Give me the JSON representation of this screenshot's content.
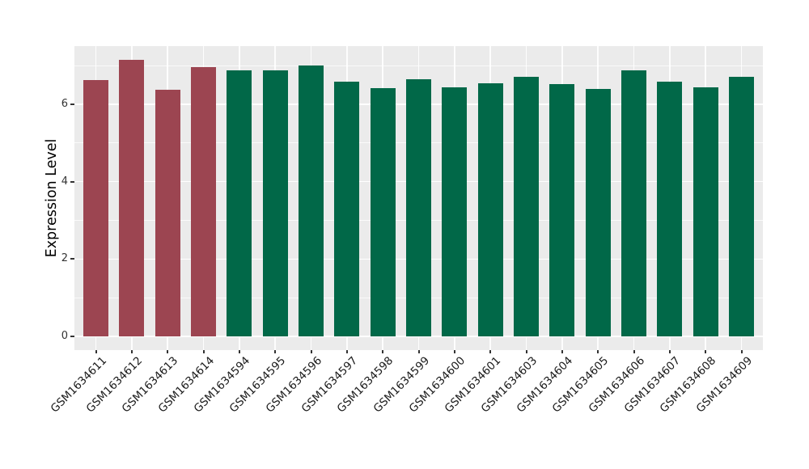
{
  "chart_data": {
    "type": "bar",
    "title": "",
    "xlabel": "",
    "ylabel": "Expression Level",
    "categories": [
      "GSM1634611",
      "GSM1634612",
      "GSM1634613",
      "GSM1634614",
      "GSM1634594",
      "GSM1634595",
      "GSM1634596",
      "GSM1634597",
      "GSM1634598",
      "GSM1634599",
      "GSM1634600",
      "GSM1634601",
      "GSM1634603",
      "GSM1634604",
      "GSM1634605",
      "GSM1634606",
      "GSM1634607",
      "GSM1634608",
      "GSM1634609"
    ],
    "values": [
      6.62,
      7.15,
      6.38,
      6.97,
      6.88,
      6.87,
      7.0,
      6.59,
      6.42,
      6.64,
      6.44,
      6.54,
      6.71,
      6.52,
      6.4,
      6.88,
      6.59,
      6.44,
      6.71
    ],
    "bar_colors": [
      "#9C4551",
      "#9C4551",
      "#9C4551",
      "#9C4551",
      "#016848",
      "#016848",
      "#016848",
      "#016848",
      "#016848",
      "#016848",
      "#016848",
      "#016848",
      "#016848",
      "#016848",
      "#016848",
      "#016848",
      "#016848",
      "#016848",
      "#016848"
    ],
    "yticks": [
      0,
      2,
      4,
      6
    ],
    "minor_yticks": [
      1,
      3,
      5,
      7
    ],
    "ylim": [
      0,
      7.5
    ],
    "grid": "on",
    "legend_position": "none",
    "colors": {
      "highlight_group": "#9C4551",
      "default_group": "#016848",
      "panel_background": "#EBEBEB",
      "gridline": "#FFFFFF",
      "tick_text": "#333333",
      "axis_title_text": "#000000"
    }
  }
}
